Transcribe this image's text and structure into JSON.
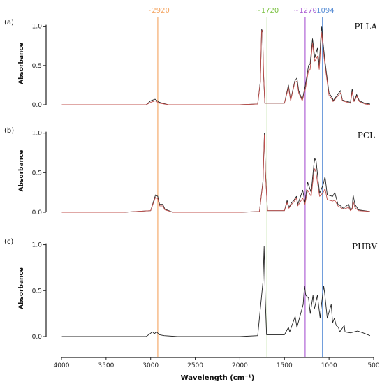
{
  "chart_data": [
    {
      "panel": "(a)",
      "type": "line",
      "name": "PLLA",
      "ylabel": "Absorbance",
      "yticks": [
        "0.0",
        "0.5",
        "1.0"
      ],
      "ylim": [
        0,
        1.05
      ],
      "xlim": [
        4000,
        500
      ],
      "series": [
        {
          "color": "#222222",
          "points": [
            [
              3995,
              0
            ],
            [
              3400,
              0
            ],
            [
              3050,
              0
            ],
            [
              3000,
              0.05
            ],
            [
              2950,
              0.07
            ],
            [
              2900,
              0.03
            ],
            [
              2800,
              0
            ],
            [
              2000,
              0
            ],
            [
              1800,
              0.01
            ],
            [
              1770,
              0.3
            ],
            [
              1755,
              0.96
            ],
            [
              1745,
              0.92
            ],
            [
              1735,
              0.4
            ],
            [
              1720,
              0.02
            ],
            [
              1500,
              0.02
            ],
            [
              1455,
              0.25
            ],
            [
              1430,
              0.06
            ],
            [
              1385,
              0.3
            ],
            [
              1360,
              0.34
            ],
            [
              1340,
              0.18
            ],
            [
              1300,
              0.06
            ],
            [
              1265,
              0.25
            ],
            [
              1230,
              0.5
            ],
            [
              1212,
              0.52
            ],
            [
              1185,
              0.84
            ],
            [
              1160,
              0.6
            ],
            [
              1130,
              0.72
            ],
            [
              1110,
              0.5
            ],
            [
              1090,
              0.9
            ],
            [
              1082,
              1.0
            ],
            [
              1070,
              0.82
            ],
            [
              1045,
              0.55
            ],
            [
              1000,
              0.15
            ],
            [
              960,
              0.08
            ],
            [
              955,
              0.05
            ],
            [
              870,
              0.18
            ],
            [
              850,
              0.06
            ],
            [
              760,
              0.03
            ],
            [
              740,
              0.2
            ],
            [
              720,
              0.05
            ],
            [
              700,
              0.1
            ],
            [
              690,
              0.13
            ],
            [
              660,
              0.05
            ],
            [
              600,
              0.02
            ],
            [
              540,
              0.01
            ]
          ]
        },
        {
          "color": "#c0504d",
          "points": [
            [
              3995,
              0
            ],
            [
              3400,
              0
            ],
            [
              3050,
              0
            ],
            [
              3000,
              0.03
            ],
            [
              2950,
              0.05
            ],
            [
              2900,
              0.02
            ],
            [
              2800,
              0
            ],
            [
              2000,
              0
            ],
            [
              1800,
              0.01
            ],
            [
              1770,
              0.28
            ],
            [
              1757,
              0.94
            ],
            [
              1745,
              0.95
            ],
            [
              1733,
              0.38
            ],
            [
              1720,
              0.02
            ],
            [
              1500,
              0.02
            ],
            [
              1455,
              0.22
            ],
            [
              1430,
              0.05
            ],
            [
              1385,
              0.28
            ],
            [
              1360,
              0.3
            ],
            [
              1340,
              0.15
            ],
            [
              1300,
              0.05
            ],
            [
              1265,
              0.2
            ],
            [
              1230,
              0.44
            ],
            [
              1212,
              0.45
            ],
            [
              1185,
              0.78
            ],
            [
              1160,
              0.55
            ],
            [
              1130,
              0.62
            ],
            [
              1110,
              0.45
            ],
            [
              1090,
              0.8
            ],
            [
              1082,
              0.92
            ],
            [
              1070,
              0.75
            ],
            [
              1045,
              0.5
            ],
            [
              1000,
              0.12
            ],
            [
              960,
              0.06
            ],
            [
              955,
              0.04
            ],
            [
              870,
              0.15
            ],
            [
              850,
              0.05
            ],
            [
              760,
              0.02
            ],
            [
              740,
              0.16
            ],
            [
              720,
              0.04
            ],
            [
              700,
              0.08
            ],
            [
              690,
              0.11
            ],
            [
              660,
              0.04
            ],
            [
              600,
              0.01
            ],
            [
              540,
              0
            ]
          ]
        }
      ]
    },
    {
      "panel": "(b)",
      "type": "line",
      "name": "PCL",
      "ylabel": "Absorbance",
      "yticks": [
        "0.0",
        "0.5",
        "1.0"
      ],
      "ylim": [
        0,
        1.05
      ],
      "xlim": [
        4000,
        500
      ],
      "series": [
        {
          "color": "#222222",
          "points": [
            [
              3995,
              0
            ],
            [
              3300,
              0
            ],
            [
              3000,
              0.02
            ],
            [
              2945,
              0.22
            ],
            [
              2920,
              0.2
            ],
            [
              2900,
              0.1
            ],
            [
              2865,
              0.1
            ],
            [
              2840,
              0.04
            ],
            [
              2750,
              0
            ],
            [
              2000,
              0
            ],
            [
              1780,
              0.01
            ],
            [
              1740,
              0.4
            ],
            [
              1725,
              1.0
            ],
            [
              1712,
              0.5
            ],
            [
              1690,
              0.02
            ],
            [
              1500,
              0.02
            ],
            [
              1470,
              0.15
            ],
            [
              1450,
              0.06
            ],
            [
              1420,
              0.12
            ],
            [
              1395,
              0.15
            ],
            [
              1365,
              0.2
            ],
            [
              1350,
              0.1
            ],
            [
              1295,
              0.28
            ],
            [
              1270,
              0.12
            ],
            [
              1240,
              0.38
            ],
            [
              1200,
              0.25
            ],
            [
              1170,
              0.6
            ],
            [
              1160,
              0.68
            ],
            [
              1145,
              0.65
            ],
            [
              1120,
              0.38
            ],
            [
              1105,
              0.24
            ],
            [
              1065,
              0.35
            ],
            [
              1045,
              0.45
            ],
            [
              1020,
              0.22
            ],
            [
              960,
              0.2
            ],
            [
              935,
              0.25
            ],
            [
              900,
              0.1
            ],
            [
              870,
              0.08
            ],
            [
              840,
              0.05
            ],
            [
              780,
              0.1
            ],
            [
              760,
              0.03
            ],
            [
              740,
              0.05
            ],
            [
              730,
              0.22
            ],
            [
              710,
              0.1
            ],
            [
              670,
              0.03
            ],
            [
              540,
              0.01
            ]
          ]
        },
        {
          "color": "#c0504d",
          "points": [
            [
              3995,
              0
            ],
            [
              3300,
              0
            ],
            [
              3000,
              0.02
            ],
            [
              2945,
              0.19
            ],
            [
              2920,
              0.17
            ],
            [
              2900,
              0.08
            ],
            [
              2865,
              0.08
            ],
            [
              2840,
              0.03
            ],
            [
              2750,
              0
            ],
            [
              2000,
              0
            ],
            [
              1780,
              0.01
            ],
            [
              1740,
              0.38
            ],
            [
              1725,
              0.98
            ],
            [
              1712,
              0.48
            ],
            [
              1690,
              0.02
            ],
            [
              1500,
              0.02
            ],
            [
              1470,
              0.12
            ],
            [
              1450,
              0.05
            ],
            [
              1420,
              0.1
            ],
            [
              1395,
              0.13
            ],
            [
              1365,
              0.18
            ],
            [
              1350,
              0.08
            ],
            [
              1295,
              0.18
            ],
            [
              1270,
              0.1
            ],
            [
              1240,
              0.28
            ],
            [
              1200,
              0.2
            ],
            [
              1170,
              0.5
            ],
            [
              1160,
              0.55
            ],
            [
              1145,
              0.5
            ],
            [
              1120,
              0.3
            ],
            [
              1105,
              0.2
            ],
            [
              1065,
              0.25
            ],
            [
              1045,
              0.3
            ],
            [
              1020,
              0.16
            ],
            [
              960,
              0.14
            ],
            [
              935,
              0.15
            ],
            [
              900,
              0.08
            ],
            [
              870,
              0.06
            ],
            [
              840,
              0.04
            ],
            [
              780,
              0.06
            ],
            [
              760,
              0.02
            ],
            [
              740,
              0.04
            ],
            [
              730,
              0.14
            ],
            [
              710,
              0.06
            ],
            [
              670,
              0.02
            ],
            [
              540,
              0.01
            ]
          ]
        }
      ]
    },
    {
      "panel": "(c)",
      "type": "line",
      "name": "PHBV",
      "ylabel": "Absorbance",
      "yticks": [
        "0.0",
        "0.5",
        "1.0"
      ],
      "ylim": [
        0,
        1.05
      ],
      "xlim": [
        4000,
        500
      ],
      "xticks": [
        "4000",
        "3500",
        "3000",
        "2500",
        "2000",
        "1500",
        "1000",
        "500"
      ],
      "xlabel": "Wavelength (cm⁻¹)",
      "series": [
        {
          "color": "#222222",
          "points": [
            [
              3995,
              0
            ],
            [
              3300,
              0
            ],
            [
              3050,
              0
            ],
            [
              2995,
              0.04
            ],
            [
              2975,
              0.05
            ],
            [
              2960,
              0.03
            ],
            [
              2935,
              0.05
            ],
            [
              2900,
              0.02
            ],
            [
              2850,
              0.01
            ],
            [
              2700,
              0
            ],
            [
              2000,
              0
            ],
            [
              1800,
              0.01
            ],
            [
              1740,
              0.6
            ],
            [
              1728,
              0.98
            ],
            [
              1715,
              0.42
            ],
            [
              1700,
              0.02
            ],
            [
              1500,
              0.02
            ],
            [
              1455,
              0.1
            ],
            [
              1440,
              0.05
            ],
            [
              1380,
              0.22
            ],
            [
              1360,
              0.1
            ],
            [
              1290,
              0.35
            ],
            [
              1275,
              0.55
            ],
            [
              1260,
              0.45
            ],
            [
              1230,
              0.42
            ],
            [
              1210,
              0.25
            ],
            [
              1180,
              0.45
            ],
            [
              1165,
              0.3
            ],
            [
              1130,
              0.45
            ],
            [
              1100,
              0.2
            ],
            [
              1090,
              0.3
            ],
            [
              1060,
              0.55
            ],
            [
              1050,
              0.48
            ],
            [
              1020,
              0.2
            ],
            [
              975,
              0.35
            ],
            [
              960,
              0.15
            ],
            [
              940,
              0.2
            ],
            [
              920,
              0.12
            ],
            [
              895,
              0.1
            ],
            [
              880,
              0.05
            ],
            [
              830,
              0.12
            ],
            [
              820,
              0.05
            ],
            [
              760,
              0.04
            ],
            [
              680,
              0.06
            ],
            [
              620,
              0.04
            ],
            [
              540,
              0.01
            ]
          ]
        }
      ]
    }
  ],
  "markers": [
    {
      "label": "~2920",
      "wavenumber": 2920,
      "color": "#f4a460"
    },
    {
      "label": "~1720",
      "wavenumber": 1695,
      "color": "#7cc243"
    },
    {
      "label": "~1270",
      "wavenumber": 1268,
      "color": "#a855d1"
    },
    {
      "label": "~1094",
      "wavenumber": 1074,
      "color": "#5b8fd6"
    }
  ]
}
